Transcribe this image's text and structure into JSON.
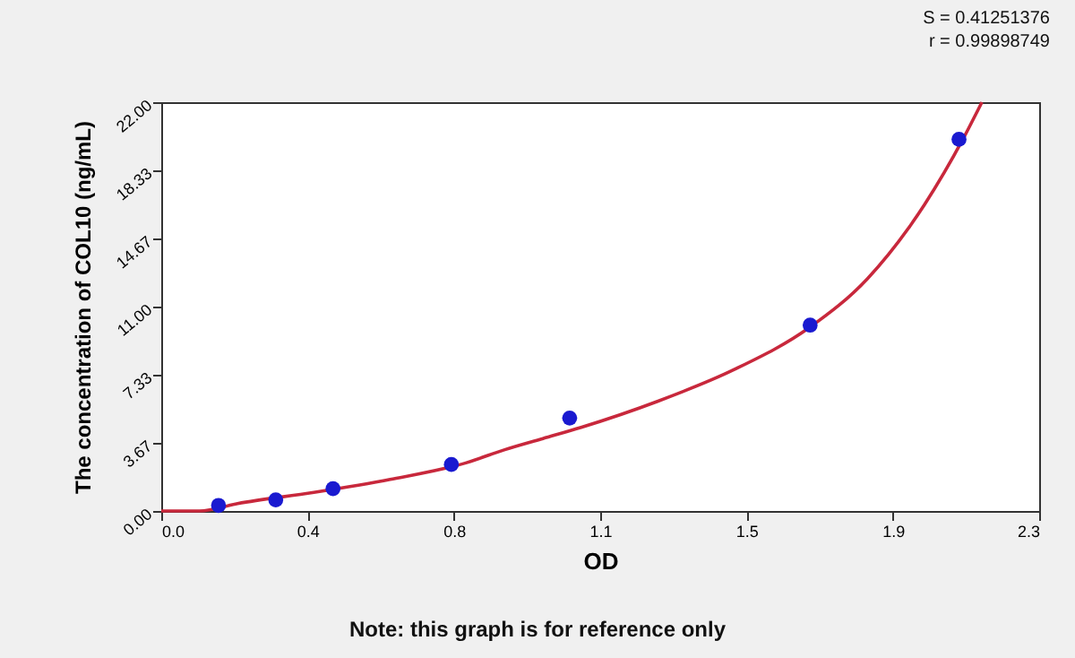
{
  "chart_data": {
    "type": "scatter",
    "xlabel": "OD",
    "ylabel": "The concentration of COL10 (ng/mL)",
    "annotations": [
      "S = 0.41251376\nr = 0.99898749",
      "Note: this graph is for reference only"
    ],
    "xlim": [
      0,
      2.3
    ],
    "xticks": [
      {
        "value": 0,
        "label": "0.0"
      },
      {
        "value": 0.383,
        "label": "0.4"
      },
      {
        "value": 0.767,
        "label": "0.8"
      },
      {
        "value": 1.15,
        "label": "1.1"
      },
      {
        "value": 1.533,
        "label": "1.5"
      },
      {
        "value": 1.917,
        "label": "1.9"
      },
      {
        "value": 2.3,
        "label": "2.3"
      }
    ],
    "ylim": [
      0,
      22
    ],
    "yticks": [
      {
        "value": 0,
        "label": "0.00"
      },
      {
        "value": 3.667,
        "label": "3.67"
      },
      {
        "value": 7.333,
        "label": "7.33"
      },
      {
        "value": 11,
        "label": "11.00"
      },
      {
        "value": 14.667,
        "label": "14.67"
      },
      {
        "value": 18.333,
        "label": "18.33"
      },
      {
        "value": 22,
        "label": "22.00"
      }
    ],
    "grid": false,
    "marker": "circle",
    "series": [
      {
        "type": "line",
        "color": "#c8283c",
        "line_style": "solid",
        "marker": "none",
        "x": [
          0,
          0.1,
          0.2,
          0.4,
          0.6,
          0.8,
          0.9,
          1.0,
          1.1,
          1.3,
          1.5,
          1.7,
          1.85,
          2.0,
          2.1,
          2.15
        ],
        "values": [
          0,
          0,
          0.4,
          1.0,
          1.7,
          2.6,
          3.3,
          3.9,
          4.5,
          5.9,
          7.6,
          9.9,
          12.5,
          16.5,
          20,
          22
        ]
      },
      {
        "color": "#1a1ad0",
        "x": [
          0.15,
          0.3,
          0.45,
          0.76,
          1.07,
          1.7,
          2.09
        ],
        "values": [
          0.3,
          0.6,
          1.2,
          2.5,
          5.0,
          10.0,
          20.0
        ]
      }
    ]
  }
}
